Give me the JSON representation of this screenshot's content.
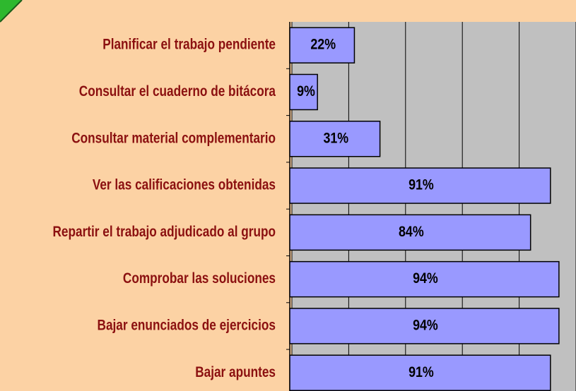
{
  "chart_data": {
    "type": "hbar",
    "categories": [
      "Planificar el trabajo pendiente",
      "Consultar el cuaderno de bitácora",
      "Consultar material complementario",
      "Ver las calificaciones obtenidas",
      "Repartir el trabajo adjudicado al grupo",
      "Comprobar las soluciones",
      "Bajar enunciados de ejercicios",
      "Bajar apuntes"
    ],
    "values": [
      22,
      9,
      31,
      91,
      84,
      94,
      94,
      91
    ],
    "value_labels": [
      "22%",
      "9%",
      "31%",
      "91%",
      "84%",
      "94%",
      "94%",
      "91%"
    ],
    "color": "#9999ff",
    "xlim": [
      0,
      100
    ],
    "xticks": [
      0,
      20,
      40,
      60,
      80,
      100
    ],
    "grid": true
  }
}
